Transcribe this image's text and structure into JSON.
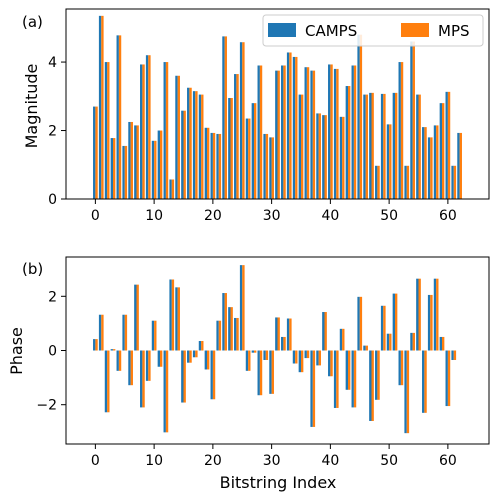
{
  "chart_data": [
    {
      "type": "bar",
      "panel_label": "(a)",
      "ylabel": "Magnitude",
      "xlabel": "",
      "ylim": [
        0,
        5.55
      ],
      "xlim": [
        -5,
        67
      ],
      "yticks": [
        0,
        2,
        4
      ],
      "xticks": [
        0,
        10,
        20,
        30,
        40,
        50,
        60
      ],
      "legend": {
        "placement": "top-right",
        "columns": 2
      },
      "series": [
        {
          "name": "CAMPS",
          "color": "#1f77b4",
          "values": [
            2.7,
            5.35,
            4.0,
            1.78,
            4.78,
            1.55,
            2.25,
            2.15,
            3.93,
            4.2,
            1.7,
            2.0,
            4.0,
            0.57,
            3.6,
            2.58,
            3.25,
            3.15,
            3.05,
            2.08,
            1.93,
            1.9,
            4.75,
            2.95,
            3.65,
            4.58,
            2.35,
            2.8,
            3.9,
            1.9,
            1.8,
            3.75,
            3.9,
            4.28,
            4.15,
            3.05,
            3.85,
            3.75,
            2.5,
            2.45,
            3.93,
            3.8,
            2.4,
            3.3,
            3.9,
            4.8,
            3.05,
            3.1,
            0.97,
            3.07,
            2.18,
            3.1,
            4.0,
            0.97,
            4.6,
            3.05,
            2.1,
            1.8,
            2.15,
            2.8,
            3.13,
            0.97,
            1.93,
            0.0
          ]
        },
        {
          "name": "MPS",
          "color": "#ff7f0e",
          "values": [
            2.7,
            5.35,
            4.0,
            1.78,
            4.78,
            1.55,
            2.25,
            2.15,
            3.93,
            4.2,
            1.7,
            2.0,
            4.0,
            0.57,
            3.6,
            2.58,
            3.25,
            3.15,
            3.05,
            2.08,
            1.93,
            1.9,
            4.75,
            2.95,
            3.65,
            4.58,
            2.35,
            2.8,
            3.9,
            1.9,
            1.8,
            3.75,
            3.9,
            4.28,
            4.15,
            3.05,
            3.85,
            3.75,
            2.5,
            2.45,
            3.93,
            3.8,
            2.4,
            3.3,
            3.9,
            4.8,
            3.05,
            3.1,
            0.97,
            3.07,
            2.18,
            3.1,
            4.0,
            0.97,
            4.6,
            3.05,
            2.1,
            1.8,
            2.15,
            2.8,
            3.13,
            0.97,
            1.93,
            0.0
          ]
        }
      ]
    },
    {
      "type": "bar",
      "panel_label": "(b)",
      "ylabel": "Phase",
      "xlabel": "Bitstring Index",
      "ylim": [
        -3.45,
        3.45
      ],
      "xlim": [
        -5,
        67
      ],
      "yticks": [
        -2,
        0,
        2
      ],
      "xticks": [
        0,
        10,
        20,
        30,
        40,
        50,
        60
      ],
      "series": [
        {
          "name": "CAMPS",
          "color": "#1f77b4",
          "values": [
            0.42,
            1.32,
            -2.28,
            0.05,
            -0.75,
            1.32,
            -1.28,
            2.43,
            -2.1,
            -1.12,
            1.1,
            -0.6,
            -3.02,
            2.62,
            2.33,
            -1.92,
            -0.45,
            -0.25,
            0.35,
            -0.7,
            -1.8,
            1.1,
            2.12,
            1.6,
            1.2,
            3.15,
            -0.75,
            -0.08,
            -1.65,
            -0.35,
            -1.6,
            1.22,
            0.5,
            1.18,
            -0.48,
            -0.8,
            -0.28,
            -2.82,
            -0.55,
            1.42,
            -0.95,
            -2.12,
            0.8,
            -1.45,
            -2.1,
            1.98,
            0.18,
            -2.6,
            -1.82,
            1.65,
            0.62,
            2.1,
            -1.28,
            -3.05,
            0.65,
            2.65,
            -2.3,
            2.05,
            2.65,
            0.5,
            -2.05,
            -0.35,
            0.0,
            0.0
          ]
        },
        {
          "name": "MPS",
          "color": "#ff7f0e",
          "values": [
            0.42,
            1.32,
            -2.28,
            0.05,
            -0.75,
            1.32,
            -1.28,
            2.43,
            -2.1,
            -1.12,
            1.1,
            -0.6,
            -3.02,
            2.62,
            2.33,
            -1.92,
            -0.45,
            -0.25,
            0.35,
            -0.7,
            -1.8,
            1.1,
            2.12,
            1.6,
            1.2,
            3.15,
            -0.75,
            -0.08,
            -1.65,
            -0.35,
            -1.6,
            1.22,
            0.5,
            1.18,
            -0.48,
            -0.8,
            -0.28,
            -2.82,
            -0.55,
            1.42,
            -0.95,
            -2.12,
            0.8,
            -1.45,
            -2.1,
            1.98,
            0.18,
            -2.6,
            -1.82,
            1.65,
            0.62,
            2.1,
            -1.28,
            -3.05,
            0.65,
            2.65,
            -2.3,
            2.05,
            2.65,
            0.5,
            -2.05,
            -0.35,
            0.0,
            0.0
          ]
        }
      ]
    }
  ]
}
